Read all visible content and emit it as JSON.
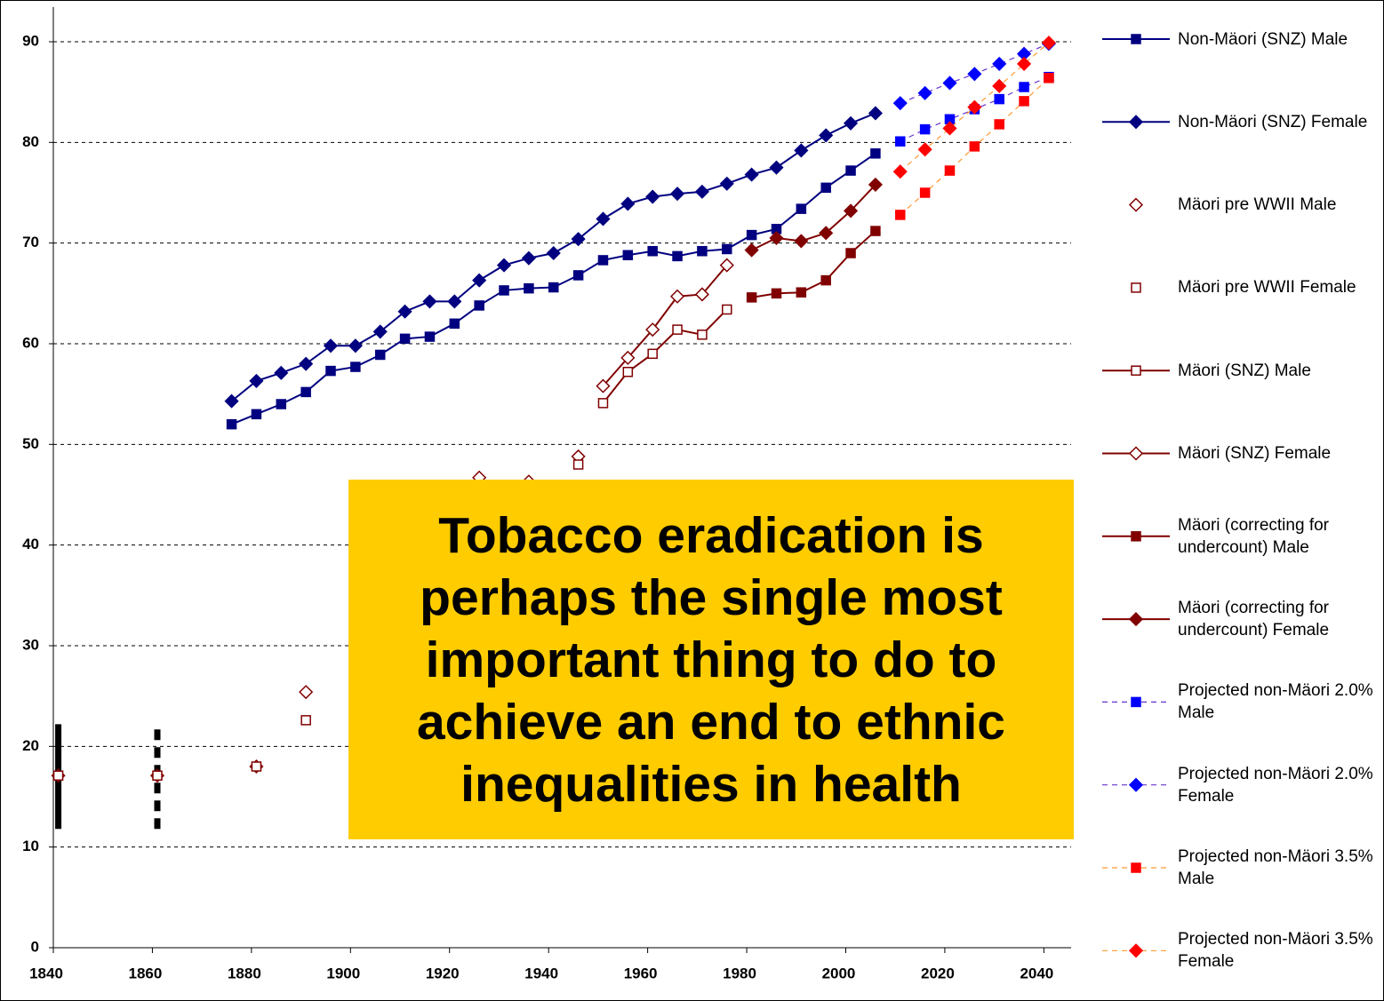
{
  "chart_data": {
    "type": "line",
    "xlim": [
      1840,
      2045.5
    ],
    "xticks": [
      1840,
      1860,
      1880,
      1900,
      1920,
      1940,
      1960,
      1980,
      2000,
      2020,
      2040
    ],
    "ylim": [
      0,
      90
    ],
    "yticks": [
      0,
      10,
      20,
      30,
      40,
      50,
      60,
      70,
      80,
      90
    ],
    "grid": true,
    "legend": "right",
    "series": [
      {
        "name": "Non-Mäori (SNZ) Male",
        "color": "#000080",
        "marker": "square",
        "filled": true,
        "line": "solid",
        "line_color": "#000080",
        "x": [
          1876,
          1881,
          1886,
          1891,
          1896,
          1901,
          1906,
          1911,
          1916,
          1921,
          1926,
          1931,
          1936,
          1941,
          1946,
          1951,
          1956,
          1961,
          1966,
          1971,
          1976,
          1981,
          1986,
          1991,
          1996,
          2001,
          2006
        ],
        "values": [
          52,
          53,
          54,
          55.2,
          57.3,
          57.7,
          58.9,
          60.5,
          60.7,
          62,
          63.8,
          65.3,
          65.5,
          65.6,
          66.8,
          68.3,
          68.8,
          69.2,
          68.7,
          69.2,
          69.4,
          70.8,
          71.4,
          73.4,
          75.5,
          77.2,
          78.9
        ]
      },
      {
        "name": "Non-Mäori (SNZ) Female",
        "color": "#000080",
        "marker": "diamond",
        "filled": true,
        "line": "solid",
        "line_color": "#000080",
        "x": [
          1876,
          1881,
          1886,
          1891,
          1896,
          1901,
          1906,
          1911,
          1916,
          1921,
          1926,
          1931,
          1936,
          1941,
          1946,
          1951,
          1956,
          1961,
          1966,
          1971,
          1976,
          1981,
          1986,
          1991,
          1996,
          2001,
          2006
        ],
        "values": [
          54.3,
          56.3,
          57.1,
          58,
          59.8,
          59.8,
          61.2,
          63.2,
          64.2,
          64.2,
          66.3,
          67.8,
          68.5,
          69,
          70.4,
          72.4,
          73.9,
          74.6,
          74.9,
          75.1,
          75.9,
          76.8,
          77.5,
          79.2,
          80.7,
          81.9,
          82.9
        ]
      },
      {
        "name": "Mäori pre WWII Male",
        "color": "#800000",
        "marker": "diamond",
        "filled": false,
        "line": "none",
        "line_color": "#800000",
        "x": [
          1841,
          1861,
          1881,
          1891,
          1926,
          1936,
          1946
        ],
        "values": [
          17.1,
          17.1,
          18,
          25.4,
          46.7,
          46.3,
          48.8
        ]
      },
      {
        "name": "Mäori pre WWII Female",
        "color": "#800000",
        "marker": "square",
        "filled": false,
        "line": "none",
        "line_color": "#800000",
        "x": [
          1841,
          1861,
          1881,
          1891,
          1946
        ],
        "values": [
          17.1,
          17.1,
          18,
          22.6,
          48
        ]
      },
      {
        "name": " Mäori (SNZ) Male",
        "color": "#800000",
        "marker": "square",
        "filled": false,
        "line": "solid",
        "line_color": "#800000",
        "x": [
          1951,
          1956,
          1961,
          1966,
          1971,
          1976
        ],
        "values": [
          54.1,
          57.2,
          59,
          61.4,
          60.9,
          63.4
        ]
      },
      {
        "name": "Mäori (SNZ) Female",
        "color": "#800000",
        "marker": "diamond",
        "filled": false,
        "line": "solid",
        "line_color": "#800000",
        "x": [
          1951,
          1956,
          1961,
          1966,
          1971,
          1976
        ],
        "values": [
          55.8,
          58.6,
          61.4,
          64.7,
          64.9,
          67.8
        ]
      },
      {
        "name": "Mäori (correcting for undercount) Male",
        "color": "#800000",
        "marker": "square",
        "filled": true,
        "line": "solid",
        "line_color": "#800000",
        "x": [
          1981,
          1986,
          1991,
          1996,
          2001,
          2006
        ],
        "values": [
          64.6,
          65,
          65.1,
          66.3,
          69,
          71.2
        ]
      },
      {
        "name": "Mäori (correcting for undercount) Female",
        "color": "#800000",
        "marker": "diamond",
        "filled": true,
        "line": "solid",
        "line_color": "#800000",
        "x": [
          1981,
          1986,
          1991,
          1996,
          2001,
          2006
        ],
        "values": [
          69.3,
          70.5,
          70.2,
          71,
          73.2,
          75.8
        ]
      },
      {
        "name": "Projected non-Mäori 2.0% Male",
        "color": "#0000ff",
        "marker": "square",
        "filled": true,
        "line": "dashed",
        "line_color": "#6633cc",
        "x": [
          2011,
          2016,
          2021,
          2026,
          2031,
          2036,
          2041
        ],
        "values": [
          80.1,
          81.3,
          82.3,
          83.3,
          84.3,
          85.5,
          86.5
        ]
      },
      {
        "name": "Projected non-Mäori 2.0% Female",
        "color": "#0000ff",
        "marker": "diamond",
        "filled": true,
        "line": "dashed",
        "line_color": "#6633cc",
        "x": [
          2011,
          2016,
          2021,
          2026,
          2031,
          2036,
          2041
        ],
        "values": [
          83.9,
          84.9,
          85.9,
          86.8,
          87.8,
          88.8,
          89.8
        ]
      },
      {
        "name": "Projected non-Mäori 3.5% Male",
        "color": "#ff0000",
        "marker": "square",
        "filled": true,
        "line": "dashed",
        "line_color": "#ff9933",
        "x": [
          2011,
          2016,
          2021,
          2026,
          2031,
          2036,
          2041
        ],
        "values": [
          72.8,
          75,
          77.2,
          79.6,
          81.8,
          84.1,
          86.4
        ]
      },
      {
        "name": "Projected non-Mäori 3.5% Female",
        "color": "#ff0000",
        "marker": "diamond",
        "filled": true,
        "line": "dashed",
        "line_color": "#ff9933",
        "x": [
          2011,
          2016,
          2021,
          2026,
          2031,
          2036,
          2041
        ],
        "values": [
          77.1,
          79.3,
          81.4,
          83.5,
          85.6,
          87.8,
          89.9
        ]
      }
    ],
    "ranges": [
      {
        "x": 1841,
        "low": 11.8,
        "high": 22.2,
        "style": "solid"
      },
      {
        "x": 1861,
        "low": 11.8,
        "high": 22.2,
        "style": "dashed"
      }
    ],
    "annotation": {
      "lines": [
        "Tobacco eradication is",
        "perhaps the single most",
        "important thing to do to",
        "achieve an end to ethnic",
        "inequalities in health"
      ],
      "color": "#ffcc00"
    }
  }
}
